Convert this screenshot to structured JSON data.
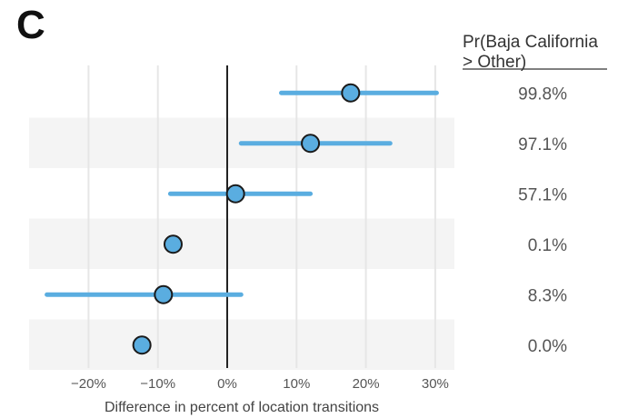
{
  "panel_label": "C",
  "chart_data": {
    "type": "forest",
    "xlabel": "Difference in percent of location transitions",
    "x_ticks": [
      -20,
      -10,
      0,
      10,
      20,
      30
    ],
    "x_tick_labels": [
      "−20%",
      "−10%",
      "0%",
      "10%",
      "20%",
      "30%"
    ],
    "xlim": [
      -29,
      33
    ],
    "reference_line": 0,
    "column_header": {
      "line1": "Pr(Baja California",
      "line2": "> Other)"
    },
    "rows": [
      {
        "estimate": 17.8,
        "lower": 7.8,
        "upper": 30.2,
        "probability": "99.8%"
      },
      {
        "estimate": 12.0,
        "lower": 2.0,
        "upper": 23.5,
        "probability": "97.1%"
      },
      {
        "estimate": 1.2,
        "lower": -8.2,
        "upper": 12.0,
        "probability": "57.1%"
      },
      {
        "estimate": -7.8,
        "lower": null,
        "upper": null,
        "probability": "0.1%"
      },
      {
        "estimate": -9.2,
        "lower": -26.0,
        "upper": 2.0,
        "probability": "8.3%"
      },
      {
        "estimate": -12.3,
        "lower": null,
        "upper": null,
        "probability": "0.0%"
      }
    ],
    "band_rows": [
      1,
      3,
      5
    ],
    "grid": true,
    "colors": {
      "point_fill": "#5AADE0",
      "point_stroke": "#1A1A1A",
      "interval": "#5AADE0",
      "band": "#F4F4F4",
      "grid": "#E6E6E6",
      "reference": "#222222"
    }
  }
}
